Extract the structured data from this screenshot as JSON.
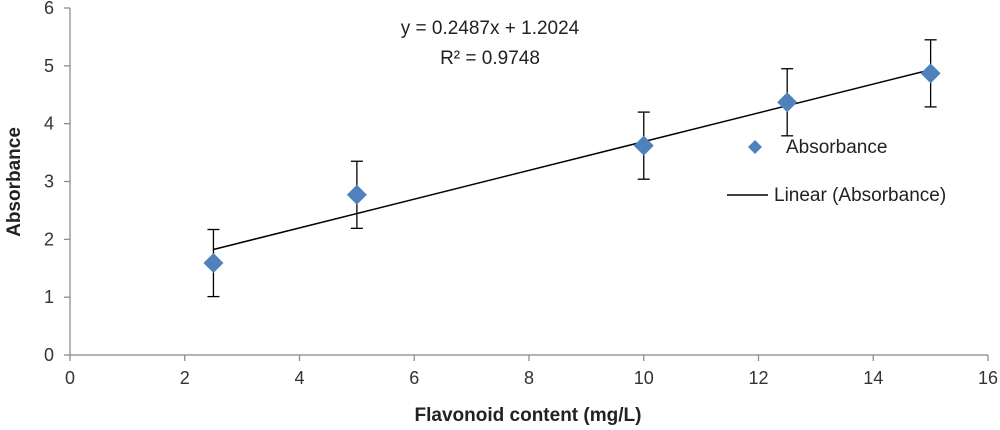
{
  "chart_data": {
    "type": "scatter",
    "xlabel": "Flavonoid content (mg/L)",
    "ylabel": "Absorbance",
    "xlim": [
      0,
      16
    ],
    "ylim": [
      0,
      6
    ],
    "xticks": [
      0,
      2,
      4,
      6,
      8,
      10,
      12,
      14,
      16
    ],
    "yticks": [
      0,
      1,
      2,
      3,
      4,
      5,
      6
    ],
    "grid": false,
    "legend_position": "right",
    "series": [
      {
        "name": "Absorbance",
        "color": "#4F81BD",
        "marker": "diamond",
        "points": [
          {
            "x": 2.5,
            "y": 1.59,
            "err": 0.58
          },
          {
            "x": 5,
            "y": 2.77,
            "err": 0.58
          },
          {
            "x": 10,
            "y": 3.62,
            "err": 0.58
          },
          {
            "x": 12.5,
            "y": 4.37,
            "err": 0.58
          },
          {
            "x": 15,
            "y": 4.87,
            "err": 0.58
          }
        ]
      }
    ],
    "trendline": {
      "name": "Linear (Absorbance)",
      "slope": 0.2487,
      "intercept": 1.2024,
      "x_range": [
        2.5,
        15
      ],
      "color": "#000000"
    },
    "annotations": {
      "equation": "y = 0.2487x + 1.2024",
      "r_squared": "R² = 0.9748"
    }
  }
}
